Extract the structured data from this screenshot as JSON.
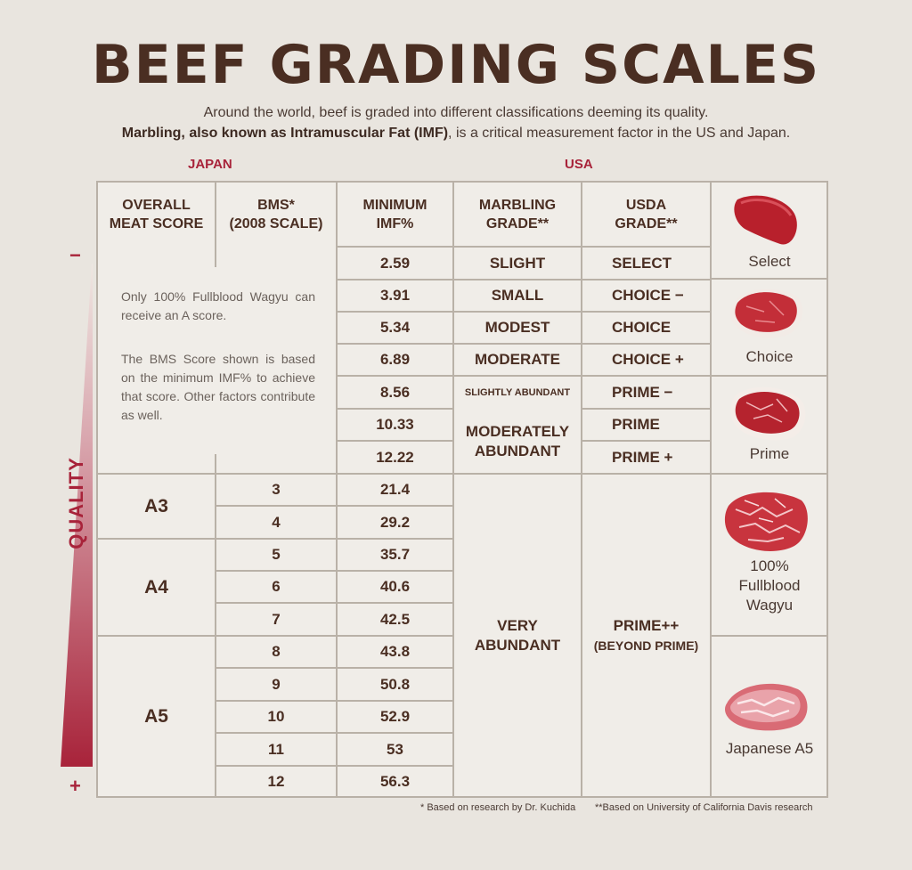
{
  "title": "BEEF GRADING SCALES",
  "subtitle_line1": "Around the world, beef is graded into different classifications deeming its quality.",
  "subtitle_line2_bold": "Marbling, also known as Intramuscular Fat (IMF)",
  "subtitle_line2_rest": ", is a critical measurement factor in the US and Japan.",
  "section_japan": "JAPAN",
  "section_usa": "USA",
  "headers": {
    "overall_l1": "OVERALL",
    "overall_l2": "MEAT SCORE",
    "bms_l1": "BMS*",
    "bms_l2": "(2008 SCALE)",
    "imf_l1": "MINIMUM",
    "imf_l2": "IMF%",
    "marbling_l1": "MARBLING",
    "marbling_l2": "GRADE**",
    "usda_l1": "USDA",
    "usda_l2": "GRADE**"
  },
  "note_p1": "Only 100% Fullblood Wagyu can receive an A score.",
  "note_p2": "The BMS Score shown is based on the minimum IMF% to achieve that score. Other factors contribute as well.",
  "imf": [
    "2.59",
    "3.91",
    "5.34",
    "6.89",
    "8.56",
    "10.33",
    "12.22",
    "21.4",
    "29.2",
    "35.7",
    "40.6",
    "42.5",
    "43.8",
    "50.8",
    "52.9",
    "53",
    "56.3"
  ],
  "bms": [
    "3",
    "4",
    "5",
    "6",
    "7",
    "8",
    "9",
    "10",
    "11",
    "12"
  ],
  "meat_scores": [
    "A3",
    "A4",
    "A5"
  ],
  "marbling": {
    "slight": "SLIGHT",
    "small": "SMALL",
    "modest": "MODEST",
    "moderate": "MODERATE",
    "slightly_abundant": "SLIGHTLY ABUNDANT",
    "mod_abundant_l1": "MODERATELY",
    "mod_abundant_l2": "ABUNDANT",
    "very_l1": "VERY",
    "very_l2": "ABUNDANT"
  },
  "usda": {
    "select": "SELECT",
    "choice_minus": "CHOICE −",
    "choice": "CHOICE",
    "choice_plus": "CHOICE +",
    "prime_minus": "PRIME −",
    "prime": "PRIME",
    "prime_plus": "PRIME +",
    "prime_pp_l1": "PRIME++",
    "prime_pp_l2": "(BEYOND PRIME)"
  },
  "meat_captions": {
    "select": "Select",
    "choice": "Choice",
    "prime": "Prime",
    "wagyu_l1": "100%",
    "wagyu_l2": "Fullblood",
    "wagyu_l3": "Wagyu",
    "japanese": "Japanese A5"
  },
  "quality_label": "QUALITY",
  "minus_sign": "−",
  "plus_sign": "+",
  "footnote1": "* Based on research by Dr. Kuchida",
  "footnote2": "**Based on University of California Davis research",
  "colors": {
    "accent": "#a8233a",
    "text": "#4a2e22",
    "border": "#b9b1a7",
    "bg": "#e9e5df"
  }
}
